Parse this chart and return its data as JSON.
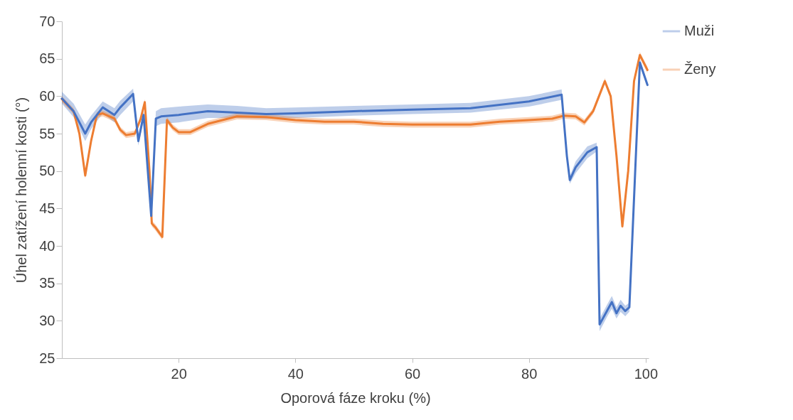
{
  "chart_data": {
    "type": "line",
    "xlabel": "Oporová fáze kroku (%)",
    "ylabel": "Úhel zatížení holenní kosti (°)",
    "xlim": [
      0,
      100.5
    ],
    "xticks": [
      20,
      40,
      60,
      80,
      100
    ],
    "ylim": [
      25,
      70
    ],
    "yticks": [
      25,
      30,
      35,
      40,
      45,
      50,
      55,
      60,
      65,
      70
    ],
    "grid": false,
    "legend": "right",
    "line_style": "solid",
    "marker": "none",
    "series": [
      {
        "name": "Muži",
        "color": "#4472c4",
        "x": [
          0,
          2,
          4,
          5,
          7,
          9,
          10,
          12.2,
          13.1,
          14,
          15.3,
          16.1,
          17,
          20,
          25,
          30,
          35,
          40,
          50,
          60,
          70,
          80,
          85.6,
          86.5,
          87,
          88,
          90,
          91.6,
          92.1,
          93.5,
          94.2,
          95,
          95.7,
          96.5,
          97.2,
          99,
          100.3
        ],
        "values": [
          59.7,
          58,
          55,
          56.5,
          58.5,
          57.5,
          58.5,
          60.3,
          54,
          57.5,
          44,
          57,
          57.3,
          57.5,
          58,
          57.8,
          57.6,
          57.7,
          58,
          58.2,
          58.4,
          59.3,
          60.2,
          52,
          48.8,
          50.5,
          52.5,
          53.2,
          29.5,
          31.5,
          32.5,
          31,
          32,
          31.3,
          31.8,
          64.5,
          61.5
        ],
        "lower": [
          59,
          57.2,
          54,
          55.6,
          57.7,
          56.5,
          57.5,
          59.3,
          53.4,
          56.8,
          43.5,
          56,
          56.3,
          56.5,
          57.1,
          57.1,
          57,
          57.1,
          57.4,
          57.6,
          57.8,
          58.6,
          59.5,
          51.5,
          48.3,
          49.7,
          51.7,
          52.6,
          28.6,
          30.7,
          31.6,
          30.3,
          31.2,
          30.6,
          31.2,
          64,
          61.2
        ],
        "upper": [
          60.6,
          59,
          56.2,
          57.4,
          59.3,
          58.4,
          59.4,
          61,
          54.6,
          58.2,
          44.5,
          58,
          58.4,
          58.6,
          58.9,
          58.7,
          58.4,
          58.5,
          58.7,
          58.9,
          59.1,
          60,
          60.9,
          52.5,
          49.3,
          51.3,
          53.3,
          53.8,
          30.3,
          32.3,
          33.3,
          31.8,
          32.8,
          32,
          32.4,
          65,
          61.8
        ]
      },
      {
        "name": "Ženy",
        "color": "#ed7d31",
        "x": [
          0,
          2,
          3,
          4,
          5,
          6,
          7,
          9,
          10,
          11,
          12.5,
          13.5,
          14.2,
          15,
          15.4,
          16,
          17.2,
          18,
          19,
          20,
          22,
          25,
          30,
          35,
          40,
          45,
          50,
          55,
          60,
          70,
          75,
          80,
          84,
          86,
          88,
          89.5,
          91,
          93,
          94,
          95,
          96,
          97,
          98,
          99,
          100.3
        ],
        "values": [
          59.6,
          58,
          55,
          49.4,
          54,
          57.5,
          57.7,
          57,
          55.5,
          54.8,
          55,
          57,
          59.2,
          50,
          43,
          42.5,
          41.2,
          56.8,
          55.8,
          55.2,
          55.2,
          56.3,
          57.3,
          57.2,
          56.8,
          56.6,
          56.6,
          56.3,
          56.2,
          56.2,
          56.6,
          56.8,
          57,
          57.4,
          57.3,
          56.5,
          58,
          62,
          60,
          52,
          42.6,
          50,
          62,
          65.5,
          63.5
        ],
        "lower": [
          59.2,
          57.6,
          54.6,
          49,
          53.6,
          57.1,
          57.3,
          56.6,
          55.1,
          54.4,
          54.6,
          56.6,
          58.8,
          49.6,
          42.6,
          42.1,
          40.8,
          56.4,
          55.4,
          54.8,
          54.8,
          55.9,
          56.9,
          56.8,
          56.4,
          56.2,
          56.2,
          55.9,
          55.8,
          55.8,
          56.2,
          56.4,
          56.6,
          57,
          56.9,
          56.1,
          57.6,
          61.6,
          59.6,
          51.6,
          42.2,
          49.6,
          61.6,
          65.1,
          63.1
        ],
        "upper": [
          60,
          58.4,
          55.4,
          49.8,
          54.4,
          57.9,
          58.1,
          57.4,
          55.9,
          55.2,
          55.4,
          57.4,
          59.6,
          50.4,
          43.4,
          42.9,
          41.6,
          57.2,
          56.2,
          55.6,
          55.6,
          56.7,
          57.7,
          57.6,
          57.2,
          57,
          57,
          56.7,
          56.6,
          56.6,
          57,
          57.2,
          57.4,
          57.8,
          57.7,
          56.9,
          58.4,
          62.4,
          60.4,
          52.4,
          43,
          50.4,
          62.4,
          65.9,
          63.9
        ]
      }
    ]
  }
}
